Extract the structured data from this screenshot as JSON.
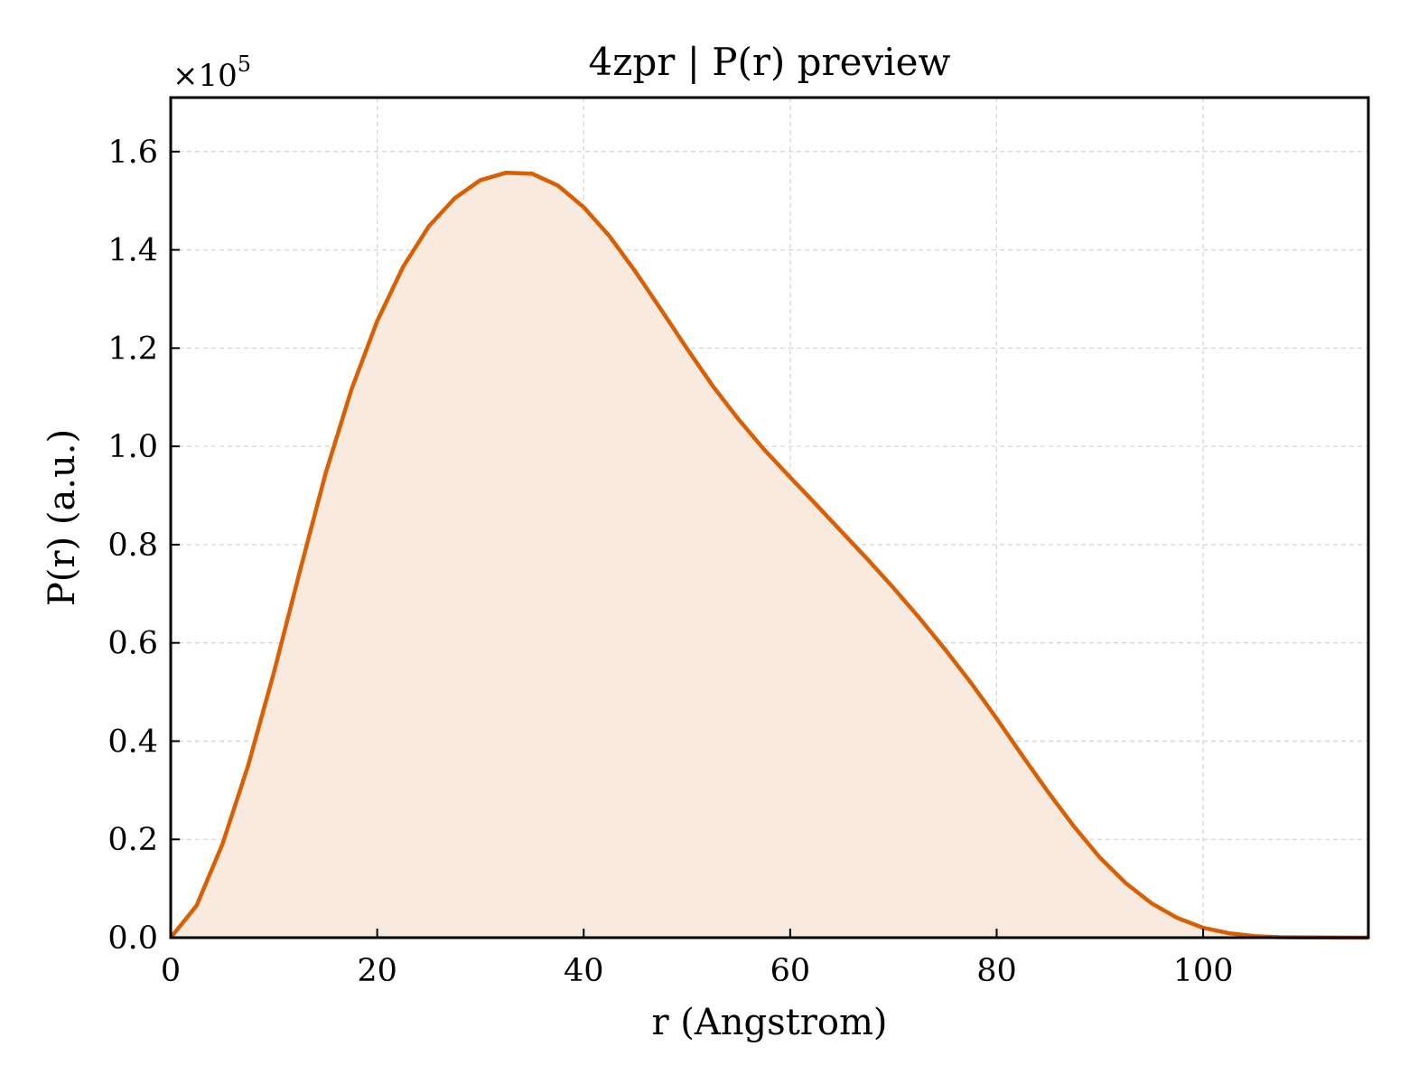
{
  "chart_data": {
    "type": "area",
    "title": "4zpr | P(r) preview",
    "xlabel": "r (Angstrom)",
    "ylabel": "P(r) (a.u.)",
    "y_offset_label": "×10",
    "y_offset_exponent": "5",
    "xlim": [
      0,
      116
    ],
    "ylim": [
      0,
      1.71
    ],
    "xticks": [
      0,
      20,
      40,
      60,
      80,
      100
    ],
    "xtick_labels": [
      "0",
      "20",
      "40",
      "60",
      "80",
      "100"
    ],
    "yticks": [
      0.0,
      0.2,
      0.4,
      0.6,
      0.8,
      1.0,
      1.2,
      1.4,
      1.6
    ],
    "ytick_labels": [
      "0.0",
      "0.2",
      "0.4",
      "0.6",
      "0.8",
      "1.0",
      "1.2",
      "1.4",
      "1.6"
    ],
    "grid": true,
    "colors": {
      "line": "#d95f02",
      "fill": "#f9eadf"
    },
    "series": [
      {
        "x": [
          0,
          2.5,
          5,
          7.5,
          10,
          12.5,
          15,
          17.5,
          20,
          22.5,
          25,
          27.5,
          30,
          32.5,
          35,
          37.5,
          40,
          42.5,
          45,
          47.5,
          50,
          52.5,
          55,
          57.5,
          60,
          62.5,
          65,
          67.5,
          70,
          72.5,
          75,
          77.5,
          80,
          82.5,
          85,
          87.5,
          90,
          92.5,
          95,
          97.5,
          100,
          102.5,
          105,
          107.5,
          110,
          112.5,
          115,
          116
        ],
        "y": [
          0.0,
          0.065,
          0.19,
          0.35,
          0.54,
          0.745,
          0.945,
          1.115,
          1.255,
          1.365,
          1.448,
          1.505,
          1.542,
          1.557,
          1.555,
          1.531,
          1.487,
          1.428,
          1.356,
          1.278,
          1.199,
          1.123,
          1.055,
          0.993,
          0.937,
          0.882,
          0.826,
          0.77,
          0.712,
          0.651,
          0.587,
          0.519,
          0.446,
          0.37,
          0.296,
          0.226,
          0.163,
          0.111,
          0.07,
          0.04,
          0.02,
          0.009,
          0.003,
          0.001,
          0.0003,
          0.0001,
          0.0,
          0.0
        ]
      }
    ]
  }
}
